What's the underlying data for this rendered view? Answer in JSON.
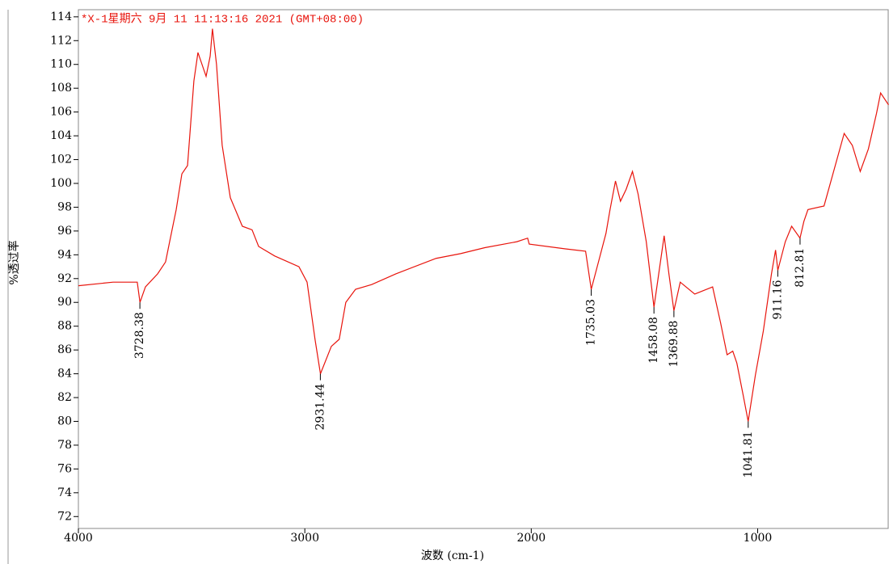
{
  "chart_data": {
    "type": "line",
    "title": "*X-1星期六 9月 11 11:13:16 2021 (GMT+08:00)",
    "x_label": "波数 (cm-1)",
    "y_label": "%透过率",
    "x": [
      4000,
      3847,
      3740,
      3728,
      3704,
      3650,
      3615,
      3597,
      3568,
      3543,
      3518,
      3490,
      3472,
      3436,
      3418,
      3408,
      3390,
      3365,
      3329,
      3276,
      3233,
      3204,
      3133,
      3026,
      2990,
      2955,
      2931,
      2883,
      2848,
      2819,
      2776,
      2705,
      2598,
      2420,
      2312,
      2205,
      2063,
      2016,
      2009,
      1849,
      1760,
      1735,
      1699,
      1670,
      1652,
      1628,
      1606,
      1581,
      1553,
      1528,
      1492,
      1458,
      1413,
      1392,
      1370,
      1342,
      1278,
      1199,
      1164,
      1135,
      1110,
      1092,
      1064,
      1042,
      1010,
      975,
      939,
      921,
      911,
      878,
      850,
      813,
      796,
      778,
      707,
      618,
      582,
      547,
      511,
      475,
      457,
      422
    ],
    "series": [
      {
        "color": "#e8140c",
        "values": [
          91.4,
          91.7,
          91.7,
          90.0,
          91.3,
          92.4,
          93.4,
          95.1,
          97.8,
          100.8,
          101.5,
          108.6,
          111.0,
          109.0,
          110.7,
          113.0,
          110.0,
          103.2,
          98.8,
          96.4,
          96.1,
          94.7,
          93.9,
          93.0,
          91.7,
          86.9,
          84.0,
          86.3,
          86.9,
          90.0,
          91.1,
          91.5,
          92.4,
          93.7,
          94.1,
          94.6,
          95.1,
          95.4,
          94.9,
          94.5,
          94.3,
          91.1,
          93.7,
          95.8,
          97.8,
          100.2,
          98.5,
          99.5,
          101.0,
          99.1,
          95.1,
          89.6,
          95.6,
          92.4,
          89.3,
          91.7,
          90.7,
          91.3,
          88.3,
          85.6,
          85.9,
          84.9,
          82.2,
          80.0,
          83.9,
          87.6,
          92.4,
          94.4,
          92.7,
          95.1,
          96.4,
          95.4,
          96.8,
          97.8,
          98.1,
          104.2,
          103.2,
          101.0,
          102.9,
          105.9,
          107.6,
          106.6
        ]
      }
    ],
    "xlim": [
      4000,
      420
    ],
    "ylim": [
      71,
      114.6
    ],
    "xticks": [
      4000,
      3000,
      2000,
      1000
    ],
    "yticks": [
      72,
      74,
      76,
      78,
      80,
      82,
      84,
      86,
      88,
      90,
      92,
      94,
      96,
      98,
      100,
      102,
      104,
      106,
      108,
      110,
      112,
      114
    ],
    "peaks": [
      {
        "x": 3728.38,
        "y": 90.0
      },
      {
        "x": 2931.44,
        "y": 84.0
      },
      {
        "x": 1735.03,
        "y": 91.1
      },
      {
        "x": 1458.08,
        "y": 89.6
      },
      {
        "x": 1369.88,
        "y": 89.3
      },
      {
        "x": 1041.81,
        "y": 80.0
      },
      {
        "x": 911.16,
        "y": 92.7
      },
      {
        "x": 812.81,
        "y": 95.4
      }
    ]
  }
}
